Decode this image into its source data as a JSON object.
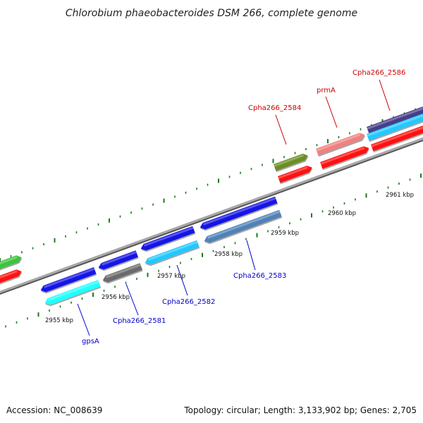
{
  "title": "Chlorobium phaeobacteroides DSM 266, complete genome",
  "accession": "Accession: NC_008639",
  "topology": "Topology: circular; Length: 3,133,902 bp; Genes: 2,705",
  "colors": {
    "background": "#ffffff",
    "backbone": "#8a8a8a",
    "tick": "#1a7a1a",
    "forward_label": "#cc0000",
    "reverse_label": "#0000cc"
  },
  "kbp_ticks": [
    {
      "label": "2955 kbp"
    },
    {
      "label": "2956 kbp"
    },
    {
      "label": "2957 kbp"
    },
    {
      "label": "2958 kbp"
    },
    {
      "label": "2959 kbp"
    },
    {
      "label": "2960 kbp"
    },
    {
      "label": "2961 kbp"
    }
  ],
  "gene_labels": [
    {
      "text": "gpsA",
      "strand": "reverse"
    },
    {
      "text": "Cpha266_2581",
      "strand": "reverse"
    },
    {
      "text": "Cpha266_2582",
      "strand": "reverse"
    },
    {
      "text": "Cpha266_2583",
      "strand": "reverse"
    },
    {
      "text": "Cpha266_2584",
      "strand": "forward"
    },
    {
      "text": "prmA",
      "strand": "forward"
    },
    {
      "text": "Cpha266_2586",
      "strand": "forward"
    }
  ],
  "features": [
    {
      "kind": "gene",
      "strand": "forward",
      "color": "#3cc43c"
    },
    {
      "kind": "cds",
      "strand": "forward",
      "color": "#ff1111"
    },
    {
      "kind": "gene",
      "strand": "reverse",
      "color": "#1515e6"
    },
    {
      "kind": "cds",
      "strand": "reverse",
      "color": "#22ffff"
    },
    {
      "kind": "gene",
      "strand": "reverse",
      "color": "#1515e6"
    },
    {
      "kind": "cds",
      "strand": "reverse",
      "color": "#6b6b6b"
    },
    {
      "kind": "gene",
      "strand": "reverse",
      "color": "#1515e6"
    },
    {
      "kind": "cds",
      "strand": "reverse",
      "color": "#22c8ff"
    },
    {
      "kind": "gene",
      "strand": "reverse",
      "color": "#1515e6"
    },
    {
      "kind": "cds",
      "strand": "reverse",
      "color": "#4f82b8"
    },
    {
      "kind": "gene",
      "strand": "forward",
      "color": "#6b8e23"
    },
    {
      "kind": "cds",
      "strand": "forward",
      "color": "#ff1111"
    },
    {
      "kind": "gene",
      "strand": "forward",
      "color": "#f08080"
    },
    {
      "kind": "cds",
      "strand": "forward",
      "color": "#ff1111"
    },
    {
      "kind": "gene",
      "strand": "forward",
      "color": "#483d8b"
    },
    {
      "kind": "cds",
      "strand": "forward",
      "color": "#22c8ff"
    },
    {
      "kind": "cds",
      "strand": "forward",
      "color": "#ff1111"
    }
  ]
}
